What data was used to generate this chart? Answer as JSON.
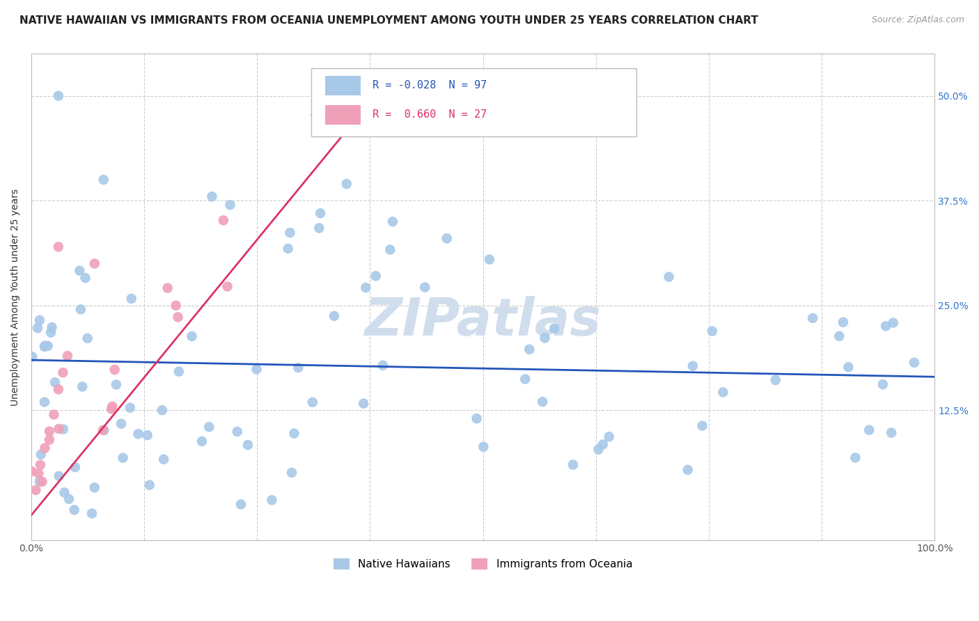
{
  "title": "NATIVE HAWAIIAN VS IMMIGRANTS FROM OCEANIA UNEMPLOYMENT AMONG YOUTH UNDER 25 YEARS CORRELATION CHART",
  "source": "Source: ZipAtlas.com",
  "ylabel": "Unemployment Among Youth under 25 years",
  "xlim": [
    0,
    100
  ],
  "ylim": [
    -3,
    55
  ],
  "legend1_r": "-0.028",
  "legend1_n": "97",
  "legend2_r": "0.660",
  "legend2_n": "27",
  "series1_color": "#a8c8e8",
  "series2_color": "#f0a0b8",
  "line1_color": "#2255bb",
  "line2_color": "#dd3366",
  "watermark_color": "#d0dded",
  "title_fontsize": 11,
  "source_fontsize": 9,
  "axis_label_fontsize": 10,
  "tick_fontsize": 10,
  "legend_fontsize": 11,
  "blue_line_y0": 18.5,
  "blue_line_y100": 16.5,
  "pink_line_x0": 0,
  "pink_line_y0": 0,
  "pink_line_x1": 35,
  "pink_line_y1": 46
}
